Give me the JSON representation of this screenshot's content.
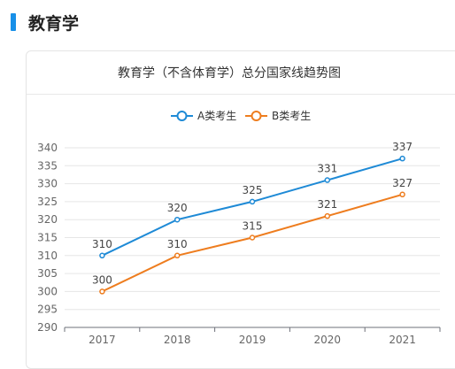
{
  "section": {
    "title": "教育学"
  },
  "chart_data": {
    "type": "line",
    "title": "教育学（不含体育学）总分国家线趋势图",
    "categories": [
      "2017",
      "2018",
      "2019",
      "2020",
      "2021"
    ],
    "ylim": [
      290,
      340
    ],
    "yticks": [
      290,
      295,
      300,
      305,
      310,
      315,
      320,
      325,
      330,
      335,
      340
    ],
    "grid": true,
    "legend_position": "top-center",
    "series": [
      {
        "name": "A类考生",
        "color": "#1e8ad6",
        "values": [
          310,
          320,
          325,
          331,
          337
        ]
      },
      {
        "name": "B类考生",
        "color": "#ee7d1f",
        "values": [
          300,
          310,
          315,
          321,
          327
        ]
      }
    ]
  }
}
